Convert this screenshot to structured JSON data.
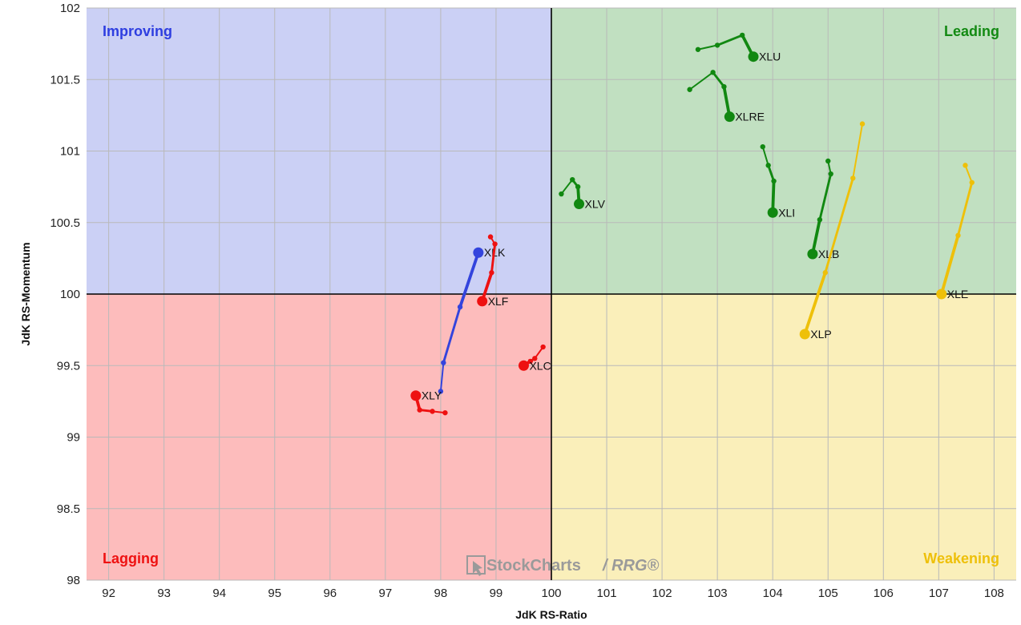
{
  "chart_data": {
    "type": "scatter",
    "title": "",
    "xlabel": "JdK RS-Ratio",
    "ylabel": "JdK RS-Momentum",
    "xlim": [
      91.6,
      108.4
    ],
    "ylim": [
      98,
      102
    ],
    "x_ticks": [
      "92",
      "93",
      "94",
      "95",
      "96",
      "97",
      "98",
      "99",
      "100",
      "101",
      "102",
      "103",
      "104",
      "105",
      "106",
      "107",
      "108"
    ],
    "y_ticks": [
      "98",
      "98.5",
      "99",
      "99.5",
      "100",
      "100.5",
      "101",
      "101.5",
      "102"
    ],
    "center": [
      100,
      100
    ],
    "grid": true,
    "quadrants": {
      "top_left": {
        "label": "Improving",
        "fill": "#cbd0f5",
        "text_color": "#2e3ee0"
      },
      "top_right": {
        "label": "Leading",
        "fill": "#c1e0c1",
        "text_color": "#138a13"
      },
      "bottom_left": {
        "label": "Lagging",
        "fill": "#fdbcbc",
        "text_color": "#ee1111"
      },
      "bottom_right": {
        "label": "Weakening",
        "fill": "#faefba",
        "text_color": "#eec00a"
      }
    },
    "watermark": {
      "brand": "StockCharts",
      "suffix": "/ RRG®"
    },
    "series": [
      {
        "name": "XLU",
        "color": "#118811",
        "points": [
          [
            102.65,
            101.71
          ],
          [
            103.0,
            101.74
          ],
          [
            103.45,
            101.81
          ],
          [
            103.65,
            101.66
          ]
        ]
      },
      {
        "name": "XLRE",
        "color": "#118811",
        "points": [
          [
            102.5,
            101.43
          ],
          [
            102.92,
            101.55
          ],
          [
            103.12,
            101.45
          ],
          [
            103.22,
            101.24
          ]
        ]
      },
      {
        "name": "XLV",
        "color": "#118811",
        "points": [
          [
            100.18,
            100.7
          ],
          [
            100.38,
            100.8
          ],
          [
            100.48,
            100.75
          ],
          [
            100.5,
            100.63
          ]
        ]
      },
      {
        "name": "XLI",
        "color": "#118811",
        "points": [
          [
            103.82,
            101.03
          ],
          [
            103.92,
            100.9
          ],
          [
            104.02,
            100.79
          ],
          [
            104.0,
            100.57
          ]
        ]
      },
      {
        "name": "XLB",
        "color": "#118811",
        "points": [
          [
            105.0,
            100.93
          ],
          [
            105.05,
            100.84
          ],
          [
            104.85,
            100.52
          ],
          [
            104.72,
            100.28
          ]
        ]
      },
      {
        "name": "XLP",
        "color": "#eec00a",
        "points": [
          [
            105.62,
            101.19
          ],
          [
            105.45,
            100.81
          ],
          [
            104.95,
            100.15
          ],
          [
            104.58,
            99.72
          ]
        ]
      },
      {
        "name": "XLE",
        "color": "#eec00a",
        "points": [
          [
            107.48,
            100.9
          ],
          [
            107.6,
            100.78
          ],
          [
            107.35,
            100.41
          ],
          [
            107.05,
            100.0
          ]
        ]
      },
      {
        "name": "XLK",
        "color": "#3344dd",
        "points": [
          [
            98.0,
            99.32
          ],
          [
            98.05,
            99.52
          ],
          [
            98.35,
            99.91
          ],
          [
            98.68,
            100.29
          ]
        ]
      },
      {
        "name": "XLF",
        "color": "#ee1111",
        "points": [
          [
            98.9,
            100.4
          ],
          [
            98.98,
            100.35
          ],
          [
            98.92,
            100.15
          ],
          [
            98.75,
            99.95
          ]
        ]
      },
      {
        "name": "XLC",
        "color": "#ee1111",
        "points": [
          [
            99.85,
            99.63
          ],
          [
            99.7,
            99.55
          ],
          [
            99.62,
            99.53
          ],
          [
            99.5,
            99.5
          ]
        ]
      },
      {
        "name": "XLY",
        "color": "#ee1111",
        "points": [
          [
            98.08,
            99.17
          ],
          [
            97.85,
            99.18
          ],
          [
            97.62,
            99.19
          ],
          [
            97.55,
            99.29
          ]
        ]
      }
    ]
  }
}
